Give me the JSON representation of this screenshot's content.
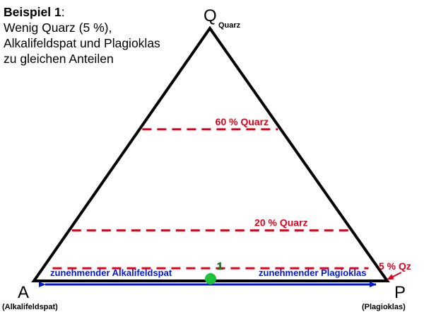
{
  "caption": {
    "title_bold": "Beispiel 1",
    "title_colon": ":",
    "line1": "Wenig Quarz (5 %),",
    "line2": "Alkalifeldspat und Plagioklas",
    "line3": "zu gleichen Anteilen"
  },
  "vertices": {
    "top": {
      "letter": "Q",
      "sub": "Quarz"
    },
    "left": {
      "letter": "A",
      "name": "(Alkalifeldspat)"
    },
    "right": {
      "letter": "P",
      "name": "(Plagioklas)"
    }
  },
  "levels": [
    {
      "label": "60 % Quarz",
      "quarz_fraction": 0.6
    },
    {
      "label": "20 % Quarz",
      "quarz_fraction": 0.2
    },
    {
      "label": "5 % Qz",
      "quarz_fraction": 0.05
    }
  ],
  "arrows": {
    "left_label": "zunehmender Alkalifeldspat",
    "right_label": "zunehmender Plagioklas"
  },
  "point": {
    "label": "1",
    "quarz": 0.05,
    "alkalifeldspat_ratio": 0.5
  },
  "colors": {
    "outline": "#000000",
    "level": "#e3001b",
    "arrow": "#0018d9",
    "point": "#1fc23b",
    "point_label": "#1a8a2e"
  }
}
